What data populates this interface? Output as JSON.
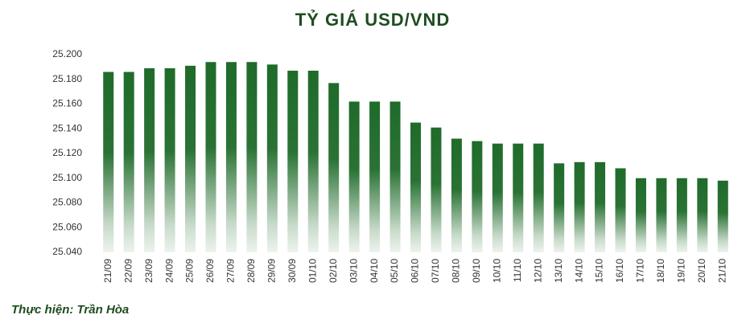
{
  "chart_data": {
    "type": "bar",
    "title": "TỶ GIÁ USD/VND",
    "credit": "Thực hiện: Trần Hòa",
    "categories": [
      "21/09",
      "22/09",
      "23/09",
      "24/09",
      "25/09",
      "26/09",
      "27/09",
      "28/09",
      "29/09",
      "30/09",
      "01/10",
      "02/10",
      "03/10",
      "04/10",
      "05/10",
      "06/10",
      "07/10",
      "08/10",
      "09/10",
      "10/10",
      "11/10",
      "12/10",
      "13/10",
      "14/10",
      "15/10",
      "16/10",
      "17/10",
      "18/10",
      "19/10",
      "20/10",
      "21/10"
    ],
    "values": [
      25186,
      25186,
      25189,
      25189,
      25191,
      25194,
      25194,
      25194,
      25192,
      25187,
      25187,
      25177,
      25162,
      25162,
      25162,
      25145,
      25141,
      25132,
      25130,
      25128,
      25128,
      25128,
      25112,
      25113,
      25113,
      25108,
      25100,
      25100,
      25100,
      25100,
      25098
    ],
    "color": "#1f6b2a",
    "ylim": [
      25040,
      25200
    ],
    "yticks": [
      {
        "value": 25040,
        "label": "25.040"
      },
      {
        "value": 25060,
        "label": "25.060"
      },
      {
        "value": 25080,
        "label": "25.080"
      },
      {
        "value": 25100,
        "label": "25.100"
      },
      {
        "value": 25120,
        "label": "25.120"
      },
      {
        "value": 25140,
        "label": "25.140"
      },
      {
        "value": 25160,
        "label": "25.160"
      },
      {
        "value": 25180,
        "label": "25.180"
      },
      {
        "value": 25200,
        "label": "25.200"
      }
    ],
    "grid": false
  }
}
